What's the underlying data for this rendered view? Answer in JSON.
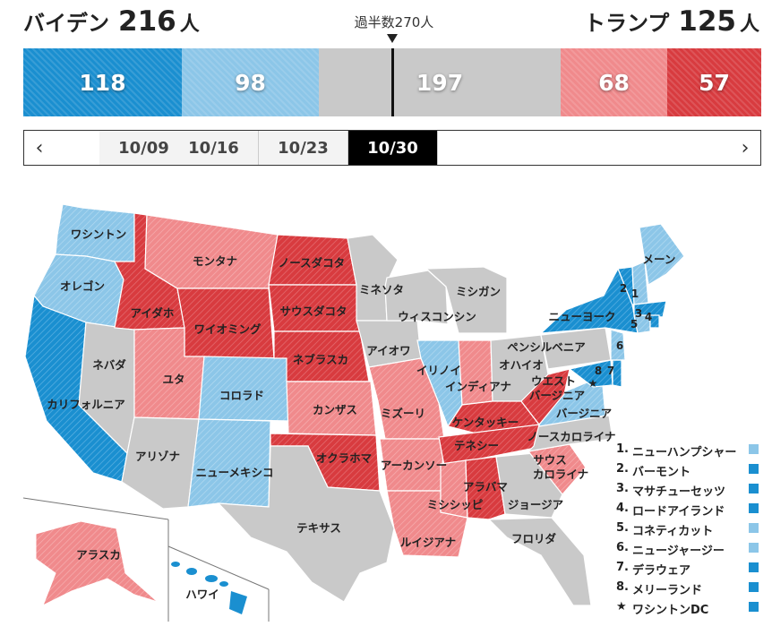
{
  "header": {
    "left": {
      "name": "バイデン",
      "count": "216",
      "unit": "人"
    },
    "right": {
      "name": "トランプ",
      "count": "125",
      "unit": "人"
    },
    "majority": "過半数270人"
  },
  "bar": {
    "segments": [
      {
        "value": "118",
        "color": "#1a8fd0"
      },
      {
        "value": "98",
        "color": "#8cc6e8"
      },
      {
        "value": "197",
        "color": "#c9c9c9"
      },
      {
        "value": "68",
        "color": "#f08a8c"
      },
      {
        "value": "57",
        "color": "#d83b3f"
      }
    ]
  },
  "timeline": {
    "prev_icon": "chevron-left-icon",
    "next_icon": "chevron-right-icon",
    "prev": "‹",
    "next": "›",
    "tabs": [
      "10/09",
      "10/16",
      "10/23",
      "10/30"
    ],
    "selected": "10/30"
  },
  "colors": {
    "solid_biden": "#1a8fd0",
    "lean_biden": "#8cc6e8",
    "tossup": "#c9c9c9",
    "lean_trump": "#f08a8c",
    "solid_trump": "#d83b3f"
  },
  "states": {
    "wa": "ワシントン",
    "or": "オレゴン",
    "ca": "カリフォルニア",
    "nv": "ネバダ",
    "id": "アイダホ",
    "mt": "モンタナ",
    "wy": "ワイオミング",
    "ut": "ユタ",
    "az": "アリゾナ",
    "co": "コロラド",
    "nm": "ニューメキシコ",
    "nd": "ノースダコタ",
    "sd": "サウスダコタ",
    "ne": "ネブラスカ",
    "ks": "カンザス",
    "ok": "オクラホマ",
    "tx": "テキサス",
    "mn": "ミネソタ",
    "ia": "アイオワ",
    "mo": "ミズーリ",
    "ar": "アーカンソー",
    "la": "ルイジアナ",
    "wi": "ウィスコンシン",
    "il": "イリノイ",
    "mi": "ミシガン",
    "in": "インディアナ",
    "oh": "オハイオ",
    "ky": "ケンタッキー",
    "tn": "テネシー",
    "ms": "ミシシッピ",
    "al": "アラバマ",
    "ga": "ジョージア",
    "fl": "フロリダ",
    "sc": "サウス",
    "sc2": "カロライナ",
    "nc": "ノースカロライナ",
    "va": "バージニア",
    "wv": "ウエスト",
    "wv2": "バージニア",
    "pa": "ペンシルベニア",
    "ny": "ニューヨーク",
    "me": "メーン",
    "ak": "アラスカ",
    "hi": "ハワイ",
    "m1": "1",
    "m2": "2",
    "m3": "3",
    "m4": "4",
    "m5": "5",
    "m6": "6",
    "m7": "7",
    "m8": "8",
    "star": "★"
  },
  "legend": [
    {
      "num": "1.",
      "label": "ニューハンプシャー",
      "color": "#8cc6e8"
    },
    {
      "num": "2.",
      "label": "バーモント",
      "color": "#1a8fd0"
    },
    {
      "num": "3.",
      "label": "マサチューセッツ",
      "color": "#1a8fd0"
    },
    {
      "num": "4.",
      "label": "ロードアイランド",
      "color": "#1a8fd0"
    },
    {
      "num": "5.",
      "label": "コネティカット",
      "color": "#8cc6e8"
    },
    {
      "num": "6.",
      "label": "ニュージャージー",
      "color": "#8cc6e8"
    },
    {
      "num": "7.",
      "label": "デラウェア",
      "color": "#1a8fd0"
    },
    {
      "num": "8.",
      "label": "メリーランド",
      "color": "#1a8fd0"
    },
    {
      "num": "★",
      "label": "ワシントンDC",
      "color": "#1a8fd0"
    }
  ]
}
